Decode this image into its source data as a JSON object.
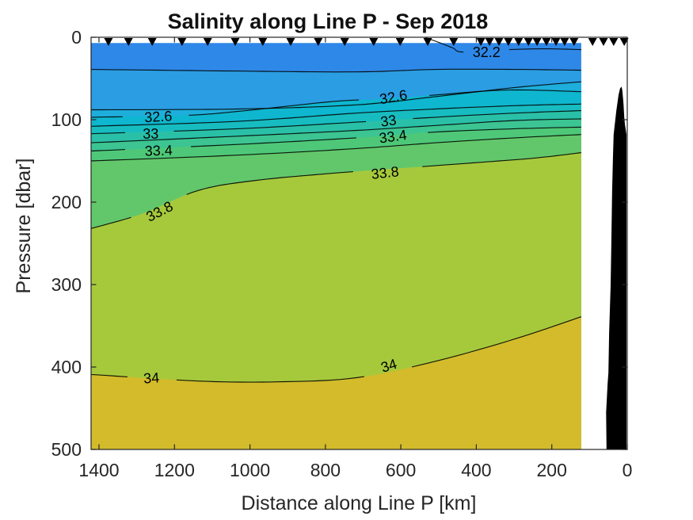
{
  "chart_data": {
    "type": "filled-contour",
    "title": "Salinity along Line P - Sep 2018",
    "xlabel": "Distance along Line P [km]",
    "ylabel": "Pressure [dbar]",
    "x_axis": {
      "min": 0,
      "max": 1400,
      "reversed": true,
      "ticks": [
        1400,
        1200,
        1000,
        800,
        600,
        400,
        200,
        0
      ]
    },
    "y_axis": {
      "min": 0,
      "max": 500,
      "reversed": true,
      "ticks": [
        0,
        100,
        200,
        300,
        400,
        500
      ]
    },
    "contour_interval": 0.2,
    "data_extent_km": [
      122,
      1421
    ],
    "surface_dbar": 7,
    "band_levels": [
      32.2,
      32.4,
      32.6,
      32.8,
      33.0,
      33.2,
      33.4,
      33.6,
      33.8,
      34.0
    ],
    "band_colors": [
      "#2e88e8",
      "#2b9de3",
      "#1eaedb",
      "#0fb6cf",
      "#17bcc0",
      "#2ac0a7",
      "#3cc492",
      "#4ec878",
      "#62c76a",
      "#a6c93c",
      "#d3bb2b"
    ],
    "line_color": "#000000",
    "axis_color": "#262626",
    "text_color": "#262626",
    "land_color": "#000000",
    "contours": [
      {
        "level": 32.2,
        "points": [
          [
            1421,
            39
          ],
          [
            1033,
            41
          ],
          [
            718,
            42
          ],
          [
            508,
            39
          ],
          [
            298,
            39
          ],
          [
            122,
            40
          ]
        ],
        "labels": []
      },
      {
        "level": 32.2,
        "points": [
          [
            537,
            0
          ],
          [
            495,
            7
          ],
          [
            462,
            13
          ],
          [
            434,
            18
          ],
          [
            313,
            15
          ],
          [
            214,
            14
          ],
          [
            122,
            15
          ]
        ],
        "labels": [
          {
            "text": "32.2",
            "km": 373,
            "dbar": 18,
            "angle": 0,
            "gap_km": 115
          }
        ]
      },
      {
        "level": 32.4,
        "points": [
          [
            1421,
            88
          ],
          [
            1033,
            87
          ],
          [
            718,
            82
          ],
          [
            508,
            72
          ],
          [
            298,
            61
          ],
          [
            122,
            54
          ]
        ],
        "labels": []
      },
      {
        "level": 32.6,
        "points": [
          [
            1421,
            97
          ],
          [
            1180,
            95
          ],
          [
            1033,
            90
          ],
          [
            781,
            78
          ],
          [
            655,
            75
          ],
          [
            508,
            70
          ],
          [
            319,
            64
          ],
          [
            122,
            66
          ]
        ],
        "labels": [
          {
            "text": "32.6",
            "km": 1243,
            "dbar": 96,
            "angle": -3,
            "gap_km": 155
          },
          {
            "text": "32.6",
            "km": 620,
            "dbar": 72,
            "angle": -10,
            "gap_km": 170
          }
        ]
      },
      {
        "level": 32.8,
        "points": [
          [
            1421,
            108
          ],
          [
            1033,
            102
          ],
          [
            718,
            92
          ],
          [
            508,
            87
          ],
          [
            298,
            83
          ],
          [
            122,
            81
          ]
        ],
        "labels": []
      },
      {
        "level": 33.0,
        "points": [
          [
            1421,
            117
          ],
          [
            1033,
            111
          ],
          [
            718,
            103
          ],
          [
            508,
            97
          ],
          [
            298,
            92
          ],
          [
            122,
            89
          ]
        ],
        "labels": [
          {
            "text": "33",
            "km": 1263,
            "dbar": 117,
            "angle": 0,
            "gap_km": 105
          },
          {
            "text": "33",
            "km": 633,
            "dbar": 101,
            "angle": -8,
            "gap_km": 105
          }
        ]
      },
      {
        "level": 33.2,
        "points": [
          [
            1421,
            128
          ],
          [
            1033,
            120
          ],
          [
            718,
            113
          ],
          [
            508,
            107
          ],
          [
            298,
            101
          ],
          [
            122,
            99
          ]
        ],
        "labels": []
      },
      {
        "level": 33.4,
        "points": [
          [
            1421,
            138
          ],
          [
            1033,
            130
          ],
          [
            718,
            122
          ],
          [
            508,
            115
          ],
          [
            298,
            111
          ],
          [
            122,
            109
          ]
        ],
        "labels": [
          {
            "text": "33.4",
            "km": 1242,
            "dbar": 137,
            "angle": -2,
            "gap_km": 157
          },
          {
            "text": "33.4",
            "km": 621,
            "dbar": 120,
            "angle": -8,
            "gap_km": 150
          }
        ]
      },
      {
        "level": 33.6,
        "points": [
          [
            1421,
            150
          ],
          [
            1033,
            143
          ],
          [
            718,
            135
          ],
          [
            508,
            128
          ],
          [
            298,
            122
          ],
          [
            122,
            118
          ]
        ],
        "labels": []
      },
      {
        "level": 33.8,
        "points": [
          [
            1421,
            232
          ],
          [
            1285,
            214
          ],
          [
            1138,
            186
          ],
          [
            991,
            174
          ],
          [
            781,
            165
          ],
          [
            487,
            155
          ],
          [
            256,
            147
          ],
          [
            122,
            140
          ]
        ],
        "labels": [
          {
            "text": "33.8",
            "km": 1240,
            "dbar": 211,
            "angle": -27,
            "gap_km": 140
          },
          {
            "text": "33.8",
            "km": 642,
            "dbar": 164,
            "angle": -6,
            "gap_km": 150
          }
        ]
      },
      {
        "level": 34.0,
        "points": [
          [
            1421,
            409
          ],
          [
            1138,
            417
          ],
          [
            928,
            418
          ],
          [
            718,
            413
          ],
          [
            508,
            393
          ],
          [
            298,
            366
          ],
          [
            122,
            339
          ]
        ],
        "labels": [
          {
            "text": "34",
            "km": 1261,
            "dbar": 413,
            "angle": -4,
            "gap_km": 100
          },
          {
            "text": "34",
            "km": 632,
            "dbar": 398,
            "angle": -17,
            "gap_km": 90
          }
        ]
      }
    ],
    "stations_km": [
      1375,
      1322,
      1259,
      1180,
      1112,
      1039,
      966,
      892,
      819,
      749,
      672,
      602,
      529,
      460,
      388,
      365,
      340,
      315,
      288,
      262,
      239,
      214,
      189,
      166,
      141,
      92,
      63,
      36,
      8
    ],
    "land_mask": {
      "color": "#000000",
      "points": [
        [
          55,
          500
        ],
        [
          56,
          455
        ],
        [
          52,
          420
        ],
        [
          50,
          407
        ],
        [
          48,
          359
        ],
        [
          44,
          301
        ],
        [
          42,
          243
        ],
        [
          40,
          186
        ],
        [
          38,
          147
        ],
        [
          36,
          118
        ],
        [
          29,
          89
        ],
        [
          23,
          70
        ],
        [
          19,
          62
        ],
        [
          15,
          60
        ],
        [
          13,
          65
        ],
        [
          10,
          80
        ],
        [
          8,
          97
        ],
        [
          6,
          106
        ],
        [
          4,
          112
        ],
        [
          2,
          118
        ],
        [
          2,
          500
        ]
      ]
    }
  }
}
